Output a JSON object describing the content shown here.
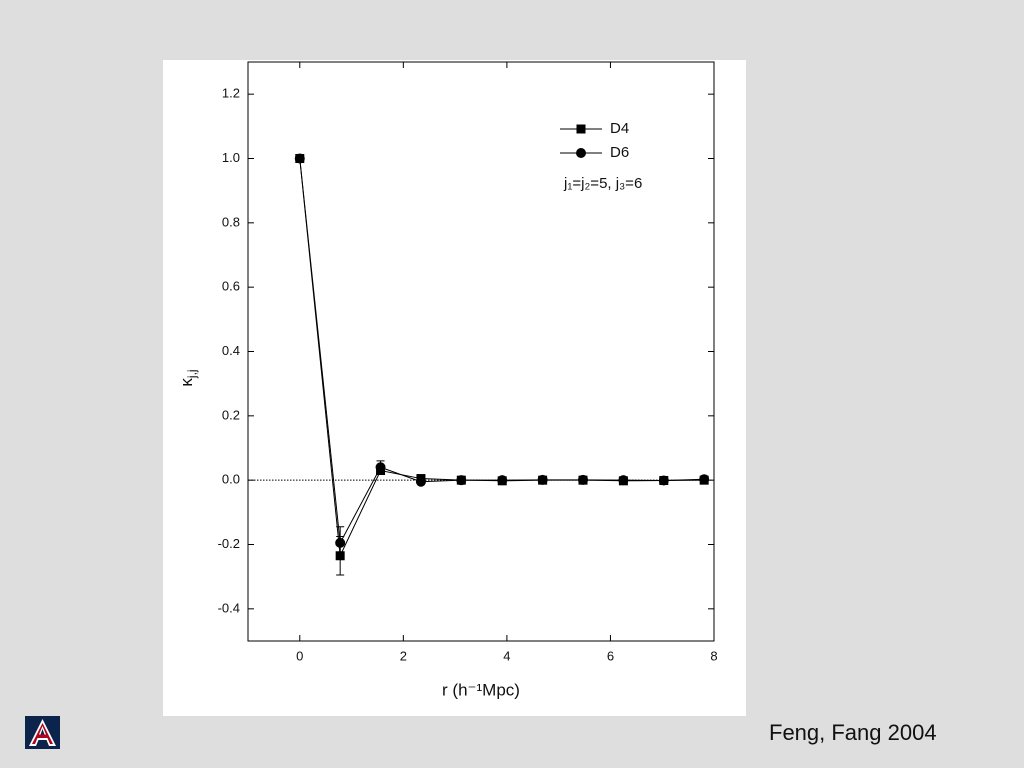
{
  "chart_data": {
    "type": "line",
    "x_label": "r (h⁻¹Mpc)",
    "y_label": {
      "symbol": "κ",
      "subscript": "j,j"
    },
    "annotation": "j₁=j₂=5, j₃=6",
    "x": [
      0,
      0.78,
      1.56,
      2.34,
      3.12,
      3.91,
      4.69,
      5.47,
      6.25,
      7.03,
      7.81
    ],
    "series": [
      {
        "name": "D4",
        "color": "#000000",
        "marker": "square",
        "values": [
          1.0,
          -0.235,
          0.03,
          0.005,
          0.0,
          -0.002,
          0.0,
          0.0,
          -0.002,
          -0.001,
          0.0
        ],
        "errors": [
          0,
          0.06,
          0.01,
          0,
          0,
          0,
          0,
          0,
          0,
          0,
          0
        ]
      },
      {
        "name": "D6",
        "color": "#000000",
        "marker": "circle",
        "values": [
          1.0,
          -0.195,
          0.04,
          -0.005,
          0.0,
          0.0,
          0.001,
          0.001,
          0.0,
          -0.001,
          0.003
        ],
        "errors": [
          0,
          0.05,
          0.02,
          0,
          0,
          0,
          0,
          0,
          0,
          0,
          0
        ]
      }
    ],
    "xlim": [
      -1,
      8
    ],
    "ylim": [
      -0.5,
      1.3
    ],
    "xticks": [
      0,
      2,
      4,
      6,
      8
    ],
    "yticks": [
      -0.4,
      -0.2,
      {
        "value": 0,
        "label": "0.0"
      },
      0.2,
      0.4,
      0.6,
      0.8,
      {
        "value": 1,
        "label": "1.0"
      },
      1.2
    ],
    "reference_line": 0,
    "grid": false,
    "legend": "top-right"
  },
  "footer": "Feng, Fang 2004"
}
